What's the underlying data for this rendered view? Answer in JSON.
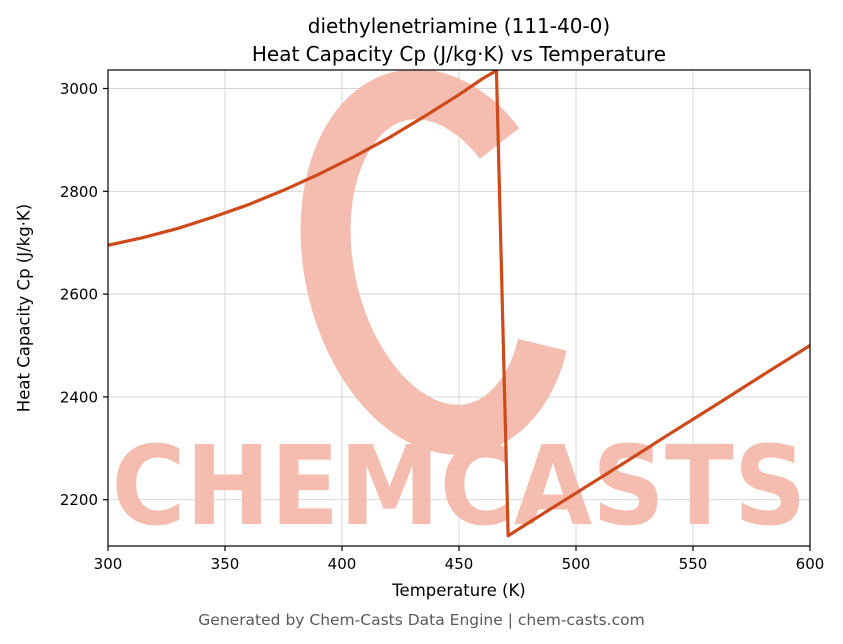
{
  "title_line1": "diethylenetriamine (111-40-0)",
  "title_line2": "Heat Capacity Cp (J/kg·K) vs Temperature",
  "footer": "Generated by Chem-Casts Data Engine | chem-casts.com",
  "watermark": {
    "text": "CHEMCASTS",
    "logo_glyph": "C",
    "color": "#f5bdb0"
  },
  "chart_data": {
    "type": "line",
    "title": "diethylenetriamine (111-40-0) Heat Capacity Cp (J/kg·K) vs Temperature",
    "xlabel": "Temperature (K)",
    "ylabel": "Heat Capacity Cp (J/kg·K)",
    "xlim": [
      300,
      600
    ],
    "ylim": [
      2110,
      3036
    ],
    "xticks": [
      300,
      350,
      400,
      450,
      500,
      550,
      600
    ],
    "yticks": [
      2200,
      2400,
      2600,
      2800,
      3000
    ],
    "grid": true,
    "legend": "none",
    "line_color": "#cf4a1b",
    "grid_color": "#d3d3d3",
    "series": [
      {
        "name": "Heat Capacity Cp",
        "points": [
          [
            300,
            2695
          ],
          [
            315,
            2710
          ],
          [
            330,
            2728
          ],
          [
            345,
            2750
          ],
          [
            360,
            2774
          ],
          [
            375,
            2802
          ],
          [
            390,
            2833
          ],
          [
            405,
            2867
          ],
          [
            420,
            2904
          ],
          [
            435,
            2945
          ],
          [
            450,
            2988
          ],
          [
            460,
            3019
          ],
          [
            466,
            3035
          ],
          [
            471,
            2130
          ],
          [
            480,
            2156
          ],
          [
            500,
            2213
          ],
          [
            520,
            2270
          ],
          [
            540,
            2328
          ],
          [
            560,
            2385
          ],
          [
            580,
            2443
          ],
          [
            600,
            2500
          ]
        ]
      }
    ]
  }
}
